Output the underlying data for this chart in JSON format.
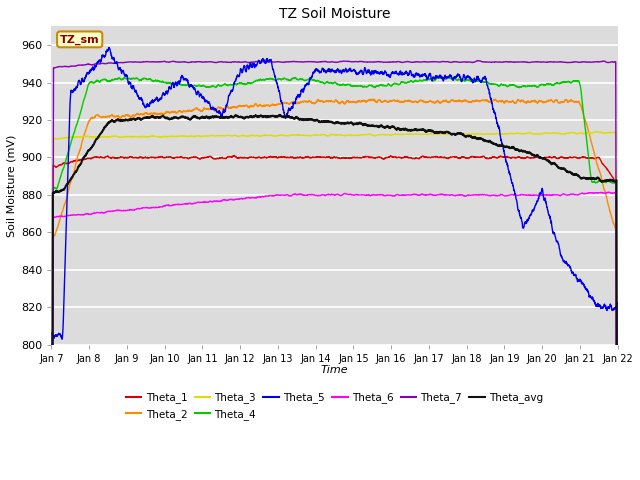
{
  "title": "TZ Soil Moisture",
  "xlabel": "Time",
  "ylabel": "Soil Moisture (mV)",
  "ylim": [
    800,
    970
  ],
  "yticks": [
    800,
    820,
    840,
    860,
    880,
    900,
    920,
    940,
    960
  ],
  "bg_color": "#dcdcdc",
  "legend_label": "TZ_sm",
  "colors": {
    "Theta_1": "#dd0000",
    "Theta_2": "#ff8800",
    "Theta_3": "#dddd00",
    "Theta_4": "#00cc00",
    "Theta_5": "#0000ee",
    "Theta_6": "#ff00ff",
    "Theta_7": "#8800bb",
    "Theta_avg": "#111111"
  },
  "xtick_labels": [
    "Jan 7",
    "Jan 8",
    "Jan 9",
    "Jan 10",
    "Jan 11",
    "Jan 12",
    "Jan 13",
    "Jan 14",
    "Jan 15",
    "Jan 16",
    "Jan 17",
    "Jan 18",
    "Jan 19",
    "Jan 20",
    "Jan 21",
    "Jan 22"
  ]
}
